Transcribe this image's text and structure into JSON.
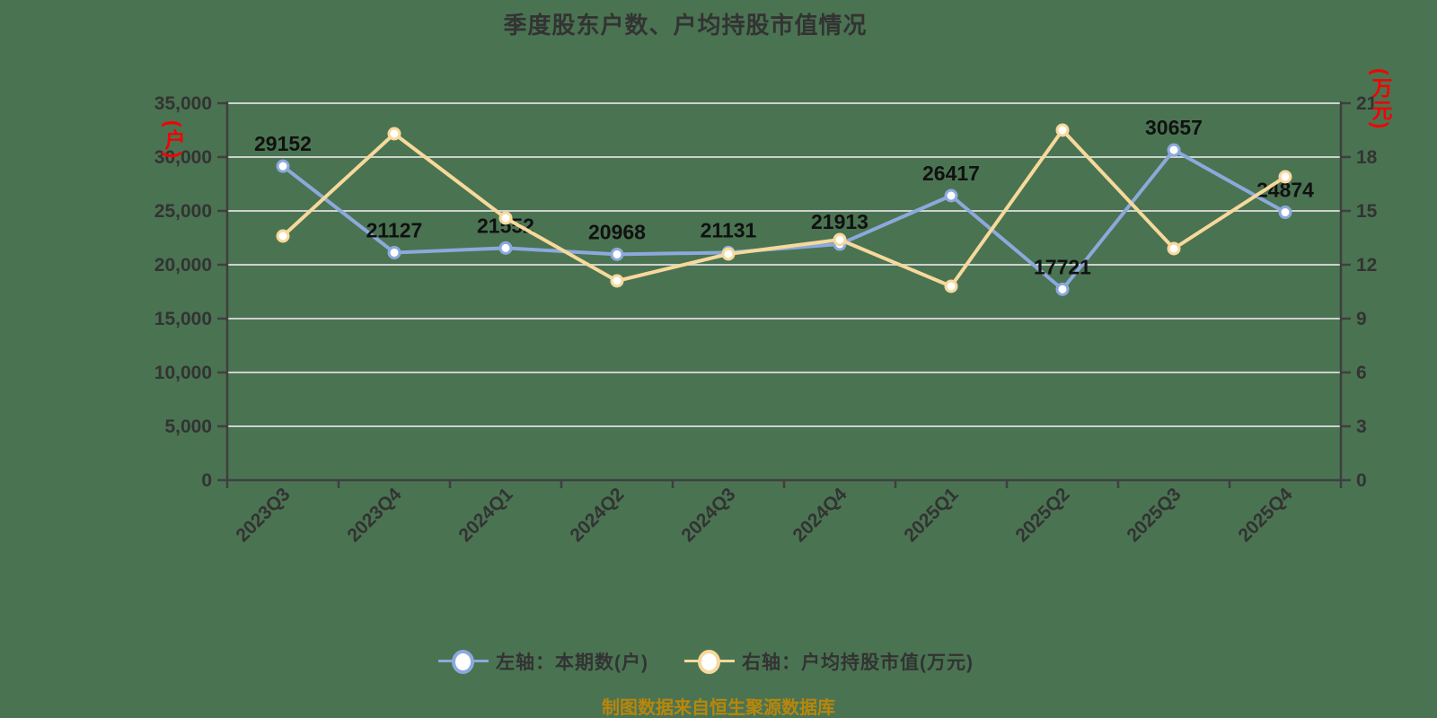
{
  "title": "季度股东户数、户均持股市值情况",
  "footer": "制图数据来自恒生聚源数据库",
  "colors": {
    "background": "#4a7352",
    "title_text": "#333333",
    "axis_line": "#3f3f3f",
    "grid_line": "#dcdcdc",
    "tick_text": "#333333",
    "data_label_text": "#111111",
    "unit_label_red": "#f50000",
    "series_blue": "#8ca9dc",
    "series_yellow": "#f6d99b",
    "footer_text": "#b8860b"
  },
  "legend": [
    {
      "label": "左轴：本期数(户)",
      "color": "#8ca9dc"
    },
    {
      "label": "右轴：户均持股市值(万元)",
      "color": "#f6d99b"
    }
  ],
  "chart_data": {
    "type": "line",
    "title": "季度股东户数、户均持股市值情况",
    "categories": [
      "2023Q3",
      "2023Q4",
      "2024Q1",
      "2024Q2",
      "2024Q3",
      "2024Q4",
      "2025Q1",
      "2025Q2",
      "2025Q3",
      "2025Q4"
    ],
    "series": [
      {
        "name": "左轴：本期数(户)",
        "axis": "left",
        "color": "#8ca9dc",
        "labeled": true,
        "values": [
          29152,
          21127,
          21552,
          20968,
          21131,
          21913,
          26417,
          17721,
          30657,
          24874
        ]
      },
      {
        "name": "右轴：户均持股市值(万元)",
        "axis": "right",
        "color": "#f6d99b",
        "labeled": false,
        "values": [
          13.6,
          19.3,
          14.6,
          11.1,
          12.6,
          13.4,
          10.8,
          19.5,
          12.9,
          16.9
        ]
      }
    ],
    "left_axis": {
      "unit": "(户)",
      "min": 0,
      "max": 35000,
      "step": 5000,
      "tick_labels": [
        "35,000",
        "30,000",
        "25,000",
        "20,000",
        "15,000",
        "10,000",
        "5,000",
        "0"
      ]
    },
    "right_axis": {
      "unit": "(万元)",
      "min": 0,
      "max": 21,
      "step": 3,
      "tick_labels": [
        "21",
        "18",
        "15",
        "12",
        "9",
        "6",
        "3",
        "0"
      ]
    },
    "grid": true,
    "legend_position": "bottom",
    "x_label_rotation": 45
  }
}
